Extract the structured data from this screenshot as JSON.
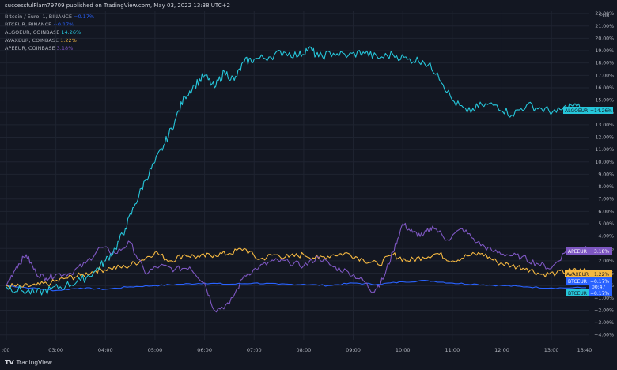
{
  "header": {
    "published": "successfulFlam79709 published on TradingView.com, May 03, 2022 13:38 UTC+2"
  },
  "legend": [
    {
      "name": "Bitcoin / Euro, 1, BINANCE",
      "value": "−0.17%",
      "color": "#2962ff"
    },
    {
      "name": "BTCEUR, BINANCE",
      "value": "−0.17%",
      "color": "#2962ff"
    },
    {
      "name": "ALGOEUR, COINBASE",
      "value": "14.26%",
      "color": "#26c6da"
    },
    {
      "name": "AVAXEUR, COINBASE",
      "value": "1.22%",
      "color": "#f5b841"
    },
    {
      "name": "APEEUR, COINBASE",
      "value": "3.18%",
      "color": "#7e57c2"
    }
  ],
  "axis": {
    "currency": "EUR",
    "y_ticks": [
      "22.00%",
      "21.00%",
      "20.00%",
      "19.00%",
      "18.00%",
      "17.00%",
      "16.00%",
      "15.00%",
      "14.00%",
      "13.00%",
      "12.00%",
      "11.00%",
      "10.00%",
      "9.00%",
      "8.00%",
      "7.00%",
      "6.00%",
      "5.00%",
      "4.00%",
      "3.00%",
      "2.00%",
      "1.00%",
      "0.00%",
      "−1.00%",
      "−2.00%",
      "−3.00%",
      "−4.00%"
    ],
    "x_ticks": [
      ":00",
      "03:00",
      "04:00",
      "05:00",
      "06:00",
      "07:00",
      "08:00",
      "09:00",
      "10:00",
      "11:00",
      "12:00",
      "13:00",
      "13:40"
    ]
  },
  "badges": {
    "algo": "ALGOEUR",
    "algo_val": "+14.26%",
    "ape": "APEEUR",
    "ape_val": "+3.18%",
    "avax": "AVAXEUR",
    "avax_val": "+1.22%",
    "btc": "BTCEUR",
    "btc_val": "−0.17%",
    "btc_time": "00:47",
    "btc2": "BTCEUR",
    "btc2_val": "−0.17%"
  },
  "footer": {
    "brand": "TradingView"
  },
  "chart_data": {
    "type": "line",
    "ylim": [
      -4.4,
      22.2
    ],
    "xlim": [
      2.0,
      13.7
    ],
    "series": [
      {
        "name": "ALGOEUR",
        "color": "#26c6da",
        "x": [
          2.0,
          2.3,
          2.6,
          2.9,
          3.2,
          3.5,
          3.8,
          4.0,
          4.2,
          4.4,
          4.6,
          4.8,
          5.0,
          5.2,
          5.4,
          5.6,
          5.8,
          6.0,
          6.2,
          6.4,
          6.6,
          6.8,
          7.0,
          7.3,
          7.6,
          7.9,
          8.1,
          8.3,
          8.6,
          8.9,
          9.2,
          9.5,
          9.8,
          10.1,
          10.4,
          10.7,
          11.0,
          11.3,
          11.6,
          11.9,
          12.2,
          12.5,
          12.8,
          13.1,
          13.4,
          13.7
        ],
        "values": [
          -0.1,
          -0.4,
          -0.6,
          -0.3,
          0.0,
          0.4,
          1.2,
          2.0,
          3.0,
          4.6,
          6.6,
          8.5,
          10.0,
          11.5,
          13.3,
          15.3,
          16.2,
          17.0,
          16.0,
          17.3,
          16.6,
          18.1,
          18.3,
          18.5,
          18.9,
          18.6,
          19.2,
          18.5,
          18.8,
          18.6,
          18.9,
          18.4,
          18.7,
          18.3,
          18.2,
          17.2,
          15.0,
          14.0,
          14.6,
          14.6,
          13.8,
          14.6,
          14.3,
          14.0,
          14.6,
          14.26
        ]
      },
      {
        "name": "APEEUR",
        "color": "#7e57c2",
        "x": [
          2.0,
          2.2,
          2.4,
          2.6,
          2.8,
          3.0,
          3.3,
          3.6,
          3.9,
          4.2,
          4.5,
          4.8,
          5.1,
          5.4,
          5.7,
          6.0,
          6.2,
          6.5,
          6.8,
          7.1,
          7.4,
          7.7,
          8.0,
          8.3,
          8.6,
          8.9,
          9.2,
          9.4,
          9.6,
          9.8,
          10.0,
          10.2,
          10.4,
          10.6,
          10.9,
          11.2,
          11.5,
          11.8,
          12.1,
          12.4,
          12.7,
          13.0,
          13.3,
          13.7
        ],
        "values": [
          0.0,
          1.5,
          2.5,
          1.0,
          0.6,
          0.9,
          1.0,
          1.8,
          3.1,
          2.6,
          3.5,
          1.0,
          1.6,
          1.3,
          1.5,
          0.2,
          -2.0,
          -1.5,
          0.8,
          1.5,
          2.0,
          1.9,
          1.6,
          2.3,
          1.5,
          1.1,
          0.4,
          -0.5,
          0.5,
          2.7,
          5.0,
          4.3,
          4.0,
          4.8,
          3.7,
          4.6,
          3.5,
          2.8,
          2.5,
          2.3,
          1.8,
          1.4,
          2.8,
          3.18
        ]
      },
      {
        "name": "AVAXEUR",
        "color": "#f5b841",
        "x": [
          2.0,
          2.3,
          2.6,
          2.9,
          3.2,
          3.5,
          3.8,
          4.1,
          4.4,
          4.7,
          5.0,
          5.3,
          5.6,
          5.9,
          6.2,
          6.5,
          6.8,
          7.1,
          7.4,
          7.7,
          8.0,
          8.3,
          8.6,
          8.9,
          9.2,
          9.5,
          9.8,
          10.1,
          10.4,
          10.7,
          11.0,
          11.3,
          11.6,
          11.9,
          12.2,
          12.5,
          12.8,
          13.1,
          13.4,
          13.7
        ],
        "values": [
          0.0,
          -0.1,
          0.0,
          0.2,
          0.6,
          0.8,
          1.2,
          1.4,
          1.5,
          2.0,
          2.7,
          2.0,
          2.5,
          2.3,
          2.5,
          2.6,
          3.0,
          2.1,
          2.5,
          2.3,
          2.5,
          2.2,
          2.5,
          2.6,
          2.1,
          1.7,
          2.5,
          2.0,
          2.3,
          2.6,
          2.0,
          2.4,
          2.6,
          1.9,
          1.6,
          1.4,
          0.9,
          1.0,
          1.2,
          1.22
        ]
      },
      {
        "name": "BTCEUR",
        "color": "#2962ff",
        "x": [
          2.0,
          2.5,
          3.0,
          3.5,
          4.0,
          4.5,
          5.0,
          5.5,
          6.0,
          6.5,
          7.0,
          7.5,
          8.0,
          8.5,
          9.0,
          9.5,
          10.0,
          10.5,
          11.0,
          11.5,
          12.0,
          12.5,
          13.0,
          13.7
        ],
        "values": [
          0.0,
          -0.2,
          -0.4,
          -0.2,
          -0.3,
          -0.1,
          0.0,
          0.1,
          0.2,
          0.1,
          0.2,
          0.1,
          0.1,
          0.0,
          0.2,
          0.1,
          0.3,
          0.4,
          0.2,
          0.1,
          0.0,
          -0.1,
          -0.2,
          -0.17
        ]
      }
    ]
  }
}
